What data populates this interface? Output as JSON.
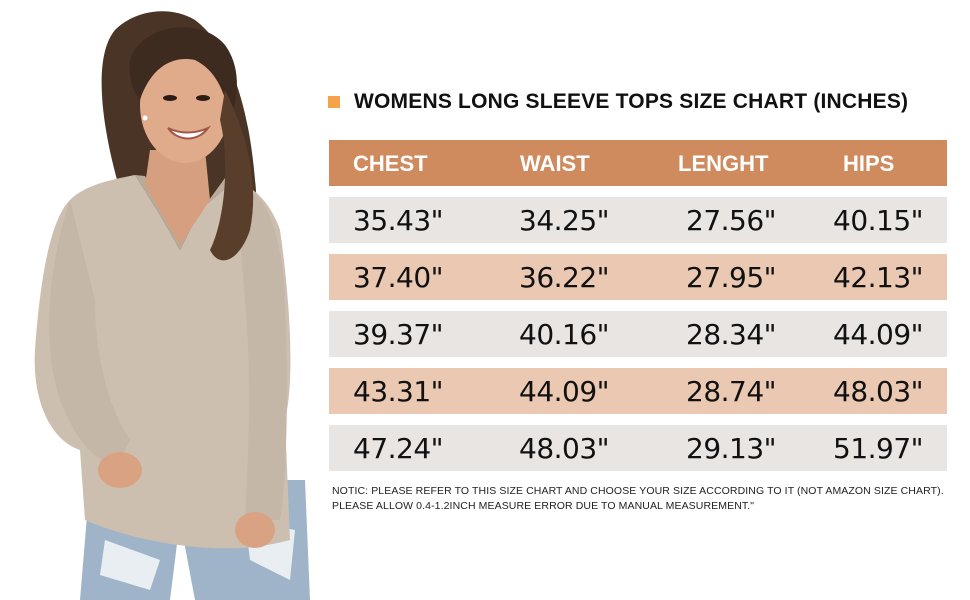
{
  "colors": {
    "accent": "#f5a24a",
    "header_bg": "#cf8b5e",
    "row_light": "#e8e5e3",
    "row_peach": "#ebc8b2"
  },
  "chart": {
    "title": "WOMENS LONG SLEEVE TOPS SIZE CHART (INCHES)",
    "headers": [
      "CHEST",
      "WAIST",
      "LENGHT",
      "HIPS"
    ],
    "rows": [
      [
        "35.43\"",
        "34.25\"",
        "27.56\"",
        "40.15\""
      ],
      [
        "37.40\"",
        "36.22\"",
        "27.95\"",
        "42.13\""
      ],
      [
        "39.37\"",
        "40.16\"",
        "28.34\"",
        "44.09\""
      ],
      [
        "43.31\"",
        "44.09\"",
        "28.74\"",
        "48.03\""
      ],
      [
        "47.24\"",
        "48.03\"",
        "29.13\"",
        "51.97\""
      ]
    ]
  },
  "note": {
    "line1": "NOTIC: PLEASE REFER TO THIS SIZE CHART AND CHOOSE YOUR SIZE ACCORDING TO IT (NOT AMAZON SIZE CHART).",
    "line2": "PLEASE ALLOW 0.4-1.2INCH MEASURE ERROR DUE TO MANUAL MEASUREMENT.\""
  }
}
